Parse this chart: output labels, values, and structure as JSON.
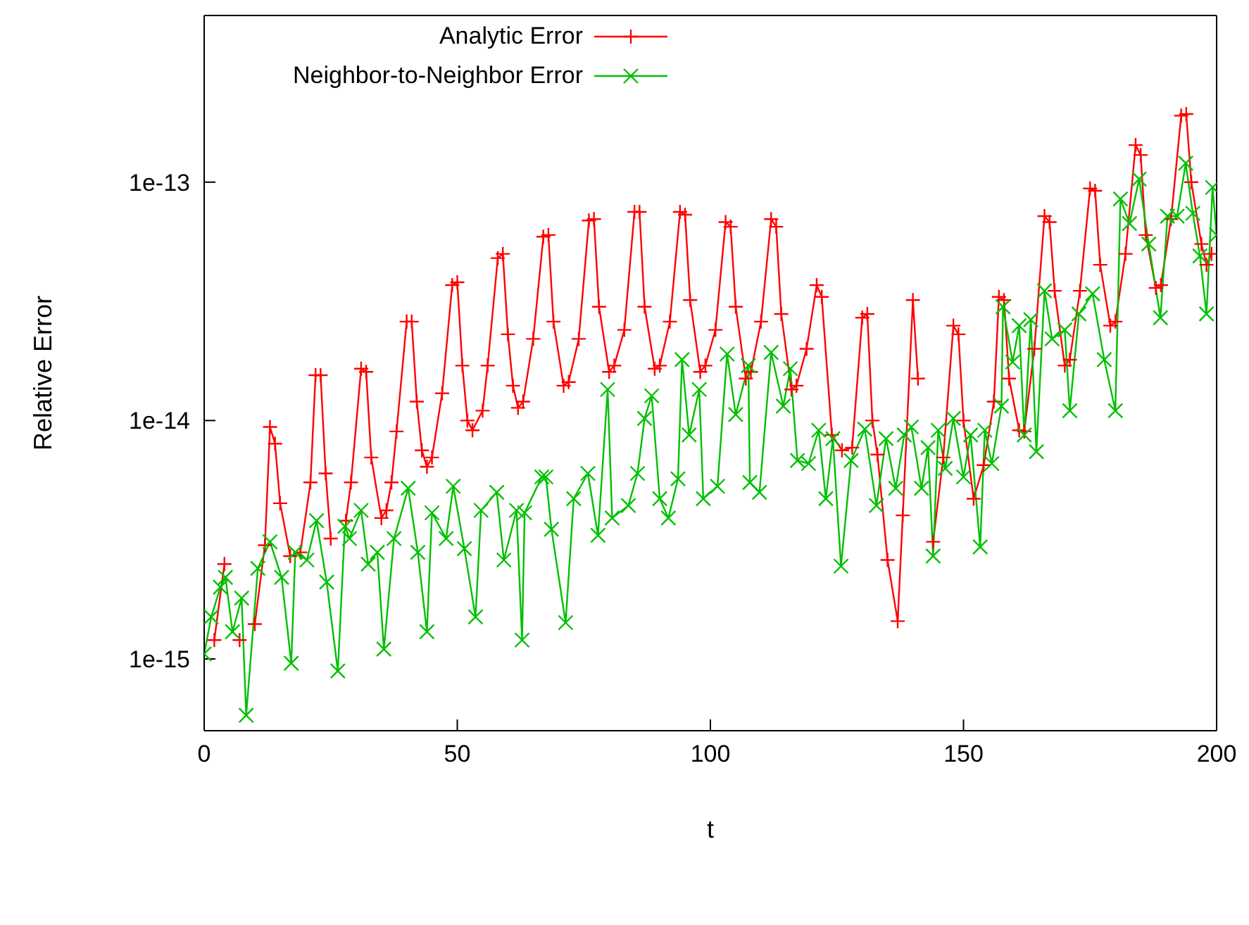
{
  "chart_data": {
    "type": "line",
    "xlabel": "t",
    "ylabel": "Relative Error",
    "log": "y",
    "xlim": [
      0,
      200
    ],
    "xticks": [
      0,
      50,
      100,
      150,
      200
    ],
    "ylim": [
      5e-16,
      5e-13
    ],
    "yticks": [
      {
        "value": 1e-15,
        "label": "1e-15"
      },
      {
        "value": 1e-14,
        "label": "1e-14"
      },
      {
        "value": 1e-13,
        "label": "1e-13"
      }
    ],
    "legend": "top",
    "marker": "cross",
    "line_style": "solid",
    "series": [
      {
        "name": "Analytic Error",
        "color": "#ff0000",
        "x": [
          2,
          4,
          5,
          7,
          9,
          10,
          12,
          13,
          14,
          15,
          17,
          19,
          21,
          22,
          23,
          24,
          25,
          26,
          28,
          29,
          31,
          32,
          33,
          35,
          36,
          37,
          38,
          40,
          41,
          42,
          43,
          44,
          45,
          47,
          49,
          50,
          51,
          52,
          53,
          55,
          56,
          58,
          59,
          60,
          61,
          62,
          63,
          65,
          67,
          68,
          69,
          71,
          72,
          74,
          76,
          77,
          78,
          80,
          81,
          83,
          85,
          86,
          87,
          89,
          90,
          92,
          94,
          95,
          96,
          98,
          99,
          101,
          103,
          104,
          105,
          107,
          108,
          110,
          112,
          113,
          114,
          116,
          117,
          119,
          121,
          122,
          124,
          126,
          128,
          130,
          131,
          132,
          133,
          135,
          137,
          138,
          140,
          141,
          142,
          144,
          146,
          148,
          149,
          150,
          152,
          154,
          156,
          157,
          158,
          159,
          161,
          162,
          164,
          166,
          167,
          168,
          170,
          171,
          173,
          175,
          176,
          177,
          179,
          180,
          182,
          184,
          185,
          186,
          188,
          189,
          191,
          193,
          194,
          195,
          197,
          198,
          199
        ],
        "values": [
          1.2e-15,
          2.5e-15,
          null,
          1.2e-15,
          null,
          1.4e-15,
          3e-15,
          9.4e-15,
          8e-15,
          4.5e-15,
          2.7e-15,
          2.8e-15,
          5.5e-15,
          1.55e-14,
          1.55e-14,
          6e-15,
          3.2e-15,
          null,
          3.8e-15,
          5.5e-15,
          1.65e-14,
          1.6e-14,
          7e-15,
          3.9e-15,
          4.2e-15,
          5.5e-15,
          9e-15,
          2.6e-14,
          2.6e-14,
          1.2e-14,
          7.5e-15,
          6.4e-15,
          7e-15,
          1.3e-14,
          3.7e-14,
          3.8e-14,
          1.7e-14,
          1e-14,
          9.1e-15,
          1.1e-14,
          1.7e-14,
          4.8e-14,
          5e-14,
          2.3e-14,
          1.4e-14,
          1.13e-14,
          1.2e-14,
          2.2e-14,
          5.9e-14,
          6e-14,
          2.6e-14,
          1.4e-14,
          1.45e-14,
          2.2e-14,
          6.9e-14,
          7e-14,
          3e-14,
          1.6e-14,
          1.7e-14,
          2.4e-14,
          7.5e-14,
          7.5e-14,
          3e-14,
          1.65e-14,
          1.7e-14,
          2.6e-14,
          7.5e-14,
          7.3e-14,
          3.2e-14,
          1.6e-14,
          1.7e-14,
          2.4e-14,
          6.8e-14,
          6.5e-14,
          3e-14,
          1.5e-14,
          1.6e-14,
          2.6e-14,
          7e-14,
          6.5e-14,
          2.8e-14,
          1.35e-14,
          1.4e-14,
          2e-14,
          3.7e-14,
          3.3e-14,
          8.7e-15,
          7.5e-15,
          7.7e-15,
          2.7e-14,
          2.8e-14,
          1e-14,
          7.2e-15,
          2.6e-15,
          1.44e-15,
          4e-15,
          3.2e-14,
          1.5e-14,
          null,
          3.1e-15,
          7e-15,
          2.5e-14,
          2.3e-14,
          1e-14,
          4.7e-15,
          6.5e-15,
          1.2e-14,
          3.3e-14,
          3.2e-14,
          1.5e-14,
          9.1e-15,
          9e-15,
          2e-14,
          7.2e-14,
          6.8e-14,
          3.5e-14,
          1.7e-14,
          1.8e-14,
          3.5e-14,
          9.4e-14,
          9.2e-14,
          4.5e-14,
          2.5e-14,
          2.6e-14,
          5e-14,
          1.43e-13,
          1.3e-13,
          6e-14,
          3.6e-14,
          3.7e-14,
          7e-14,
          1.9e-13,
          1.93e-13,
          1e-13,
          5.5e-14,
          4.5e-14,
          5e-14
        ]
      },
      {
        "name": "Neighbor-to-Neighbor Error",
        "color": "#00c000",
        "x": [
          0,
          1.4,
          3.2,
          4.2,
          5.6,
          7.4,
          8.3,
          10.6,
          13,
          15.3,
          17.2,
          18,
          20.3,
          22.2,
          24.2,
          26.4,
          27.8,
          28.7,
          31,
          32.4,
          34.2,
          35.5,
          37.5,
          40.3,
          42.2,
          44,
          45,
          47.8,
          49.2,
          51.4,
          53.6,
          54.7,
          57.8,
          59.2,
          61.7,
          62.8,
          63.3,
          66.7,
          67.5,
          68.6,
          71.4,
          73,
          75.8,
          77.8,
          79.7,
          80.6,
          83.8,
          85.6,
          87,
          88.4,
          90,
          91.7,
          93.6,
          94.4,
          95.8,
          97.8,
          98.6,
          101.4,
          103.3,
          105,
          107.5,
          107.8,
          109.7,
          112,
          114.4,
          115.8,
          117.2,
          119.4,
          121.4,
          122.8,
          124.2,
          125.8,
          127.8,
          130.5,
          132.8,
          134.7,
          136.6,
          138.3,
          139.7,
          141.7,
          143,
          144,
          145,
          146.4,
          148,
          150,
          151.4,
          153.3,
          154.2,
          155.6,
          157.5,
          157.8,
          159.7,
          161,
          162,
          163.3,
          164.4,
          166,
          167.5,
          170,
          171,
          172.8,
          175.5,
          177.8,
          180,
          181,
          182.8,
          184.7,
          186.6,
          188.9,
          190.3,
          192.2,
          193.9,
          195.3,
          196.7,
          198,
          199.2,
          200
        ],
        "values": [
          1.05e-15,
          1.5e-15,
          2e-15,
          2.2e-15,
          1.3e-15,
          1.8e-15,
          5.8e-16,
          2.4e-15,
          3.1e-15,
          2.2e-15,
          9.6e-16,
          2.8e-15,
          2.6e-15,
          3.8e-15,
          2.1e-15,
          8.9e-16,
          3.6e-15,
          3.2e-15,
          4.2e-15,
          2.5e-15,
          2.8e-15,
          1.1e-15,
          3.2e-15,
          5.2e-15,
          2.8e-15,
          1.3e-15,
          4.1e-15,
          3.2e-15,
          5.3e-15,
          2.9e-15,
          1.5e-15,
          4.2e-15,
          5e-15,
          2.6e-15,
          4.2e-15,
          1.2e-15,
          4.1e-15,
          5.8e-15,
          5.8e-15,
          3.5e-15,
          1.42e-15,
          4.7e-15,
          6e-15,
          3.3e-15,
          1.35e-14,
          3.9e-15,
          4.4e-15,
          6e-15,
          1.02e-14,
          1.27e-14,
          4.7e-15,
          3.9e-15,
          5.7e-15,
          1.8e-14,
          8.7e-15,
          1.35e-14,
          4.7e-15,
          5.3e-15,
          1.9e-14,
          1.06e-14,
          1.7e-14,
          5.5e-15,
          5e-15,
          1.93e-14,
          1.15e-14,
          1.65e-14,
          6.8e-15,
          6.6e-15,
          9.1e-15,
          4.7e-15,
          8.4e-15,
          2.45e-15,
          6.8e-15,
          9.2e-15,
          4.4e-15,
          8.4e-15,
          5.2e-15,
          8.7e-15,
          9.4e-15,
          5.2e-15,
          7.7e-15,
          2.7e-15,
          9.1e-15,
          6.3e-15,
          1.02e-14,
          5.8e-15,
          8.7e-15,
          2.95e-15,
          9.1e-15,
          6.6e-15,
          1.15e-14,
          3e-14,
          1.76e-14,
          2.5e-14,
          8.7e-15,
          2.65e-14,
          7.4e-15,
          3.5e-14,
          2.2e-14,
          2.4e-14,
          1.1e-14,
          2.8e-14,
          3.4e-14,
          1.8e-14,
          1.1e-14,
          8.5e-14,
          6.7e-14,
          1.03e-13,
          5.5e-14,
          2.7e-14,
          7.2e-14,
          7.2e-14,
          1.2e-13,
          7.4e-14,
          4.9e-14,
          2.8e-14,
          9.5e-14,
          6e-14
        ]
      }
    ]
  }
}
